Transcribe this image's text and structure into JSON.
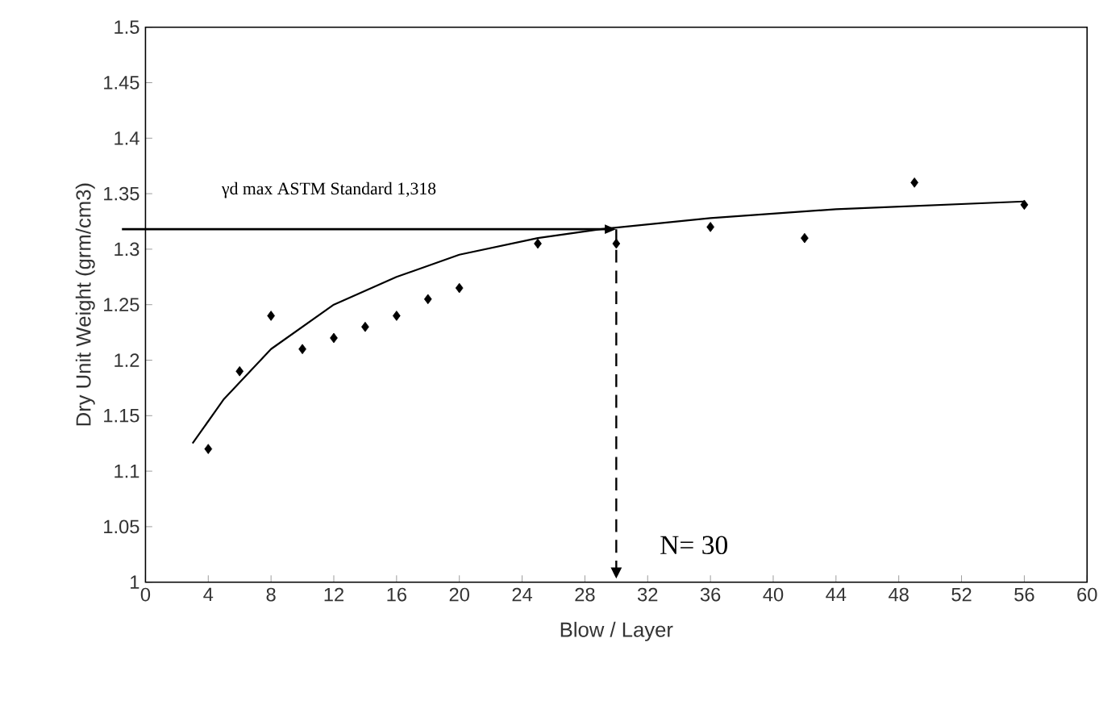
{
  "chart_data": {
    "type": "scatter",
    "xlabel": "Blow / Layer",
    "ylabel": "Dry Unit Weight (grm/cm3)",
    "xlim": [
      0,
      60
    ],
    "xticks": [
      0,
      4,
      8,
      12,
      16,
      20,
      24,
      28,
      32,
      36,
      40,
      44,
      48,
      52,
      56,
      60
    ],
    "ylim": [
      1,
      1.5
    ],
    "yticks": [
      1,
      1.05,
      1.1,
      1.15,
      1.2,
      1.25,
      1.3,
      1.35,
      1.4,
      1.45,
      1.5
    ],
    "grid": false,
    "marker": "diamond",
    "series": [
      {
        "color": "#000000",
        "x": [
          4,
          6,
          8,
          10,
          12,
          14,
          16,
          18,
          20,
          25,
          30,
          36,
          42,
          49,
          56
        ],
        "values": [
          1.12,
          1.19,
          1.24,
          1.21,
          1.22,
          1.23,
          1.24,
          1.255,
          1.265,
          1.305,
          1.305,
          1.32,
          1.31,
          1.36,
          1.34
        ]
      },
      {
        "type": "line",
        "color": "#000000",
        "marker": "none",
        "x": [
          3,
          5,
          8,
          12,
          16,
          20,
          25,
          29,
          36,
          44,
          56
        ],
        "values": [
          1.125,
          1.165,
          1.21,
          1.25,
          1.275,
          1.295,
          1.31,
          1.318,
          1.328,
          1.336,
          1.343
        ]
      }
    ],
    "ref_lines": [
      {
        "axis": "y",
        "value": 1.318,
        "label": "γd max ASTM Standard 1,318",
        "color": "#000000",
        "line_style": "solid"
      },
      {
        "axis": "x",
        "value": 30,
        "label": "N= 30",
        "color": "#000000",
        "line_style": "dashed"
      }
    ]
  }
}
